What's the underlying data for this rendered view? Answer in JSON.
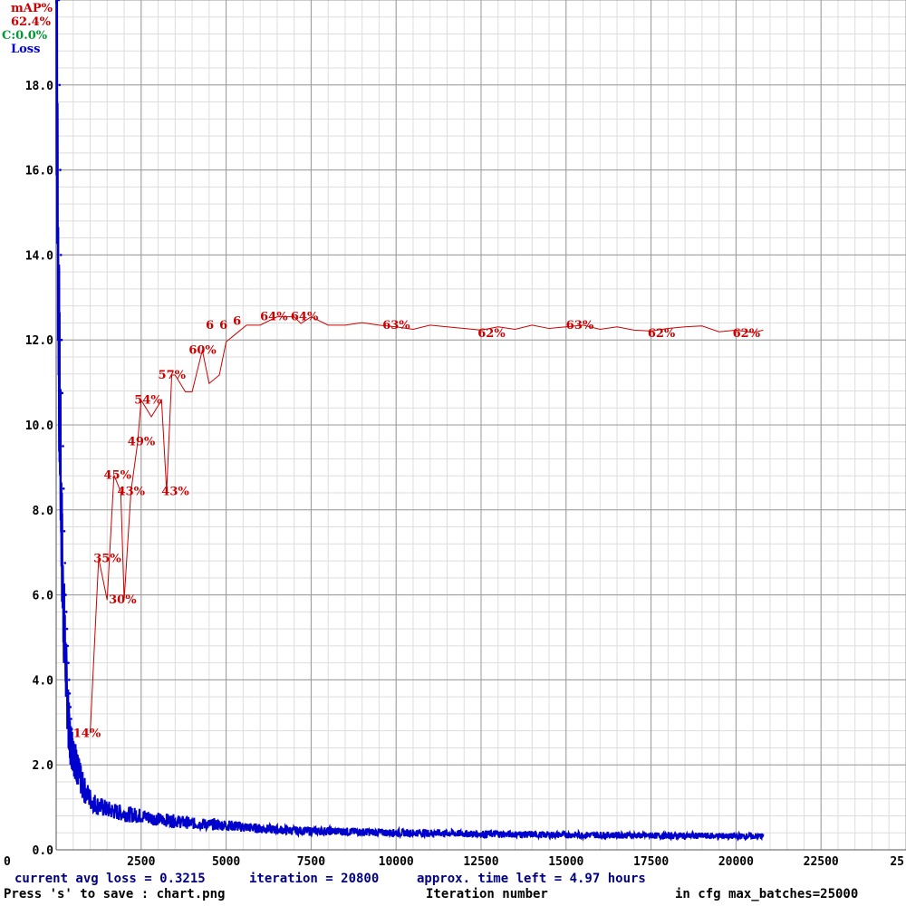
{
  "legend": {
    "map_label": "mAP%",
    "map_value": "62.4%",
    "c_label": "C:0.0%",
    "loss_label": "Loss"
  },
  "status": {
    "avg_loss": "current avg loss = 0.3215",
    "iteration": "iteration = 20800",
    "time_left": "approx. time left = 4.97 hours"
  },
  "footer": {
    "save_hint": "Press 's' to save : chart.png",
    "xlabel": "Iteration number",
    "max_batches": "in cfg max_batches=25000"
  },
  "colors": {
    "loss": "#0000cc",
    "map": "#cc0000",
    "grid_major": "#999999",
    "grid_minor": "#dddddd"
  },
  "chart_data": {
    "type": "line",
    "xlabel": "Iteration number",
    "ylabel": "Loss",
    "xlim": [
      0,
      25000
    ],
    "ylim": [
      0,
      20
    ],
    "x_ticks": [
      "0",
      "2500",
      "5000",
      "7500",
      "10000",
      "12500",
      "15000",
      "17500",
      "20000",
      "22500",
      "25"
    ],
    "y_ticks": [
      "0.0",
      "2.0",
      "4.0",
      "6.0",
      "8.0",
      "10.0",
      "12.0",
      "14.0",
      "16.0",
      "18.0"
    ],
    "grid": true,
    "series": [
      {
        "name": "Loss",
        "color": "#0000cc",
        "x": [
          0,
          20,
          50,
          80,
          120,
          160,
          200,
          250,
          300,
          350,
          400,
          500,
          600,
          700,
          800,
          1000,
          1200,
          1500,
          2000,
          2500,
          3000,
          3500,
          4000,
          5000,
          6000,
          7000,
          8000,
          9000,
          10000,
          11000,
          12000,
          13000,
          14000,
          15000,
          16000,
          17000,
          18000,
          19000,
          20000,
          20800
        ],
        "y": [
          20.0,
          18.0,
          15.0,
          12.0,
          9.5,
          7.5,
          6.0,
          5.0,
          4.0,
          3.2,
          2.6,
          2.3,
          2.0,
          1.7,
          1.45,
          1.2,
          1.05,
          0.95,
          0.85,
          0.8,
          0.72,
          0.68,
          0.62,
          0.58,
          0.5,
          0.45,
          0.44,
          0.42,
          0.4,
          0.4,
          0.38,
          0.37,
          0.36,
          0.35,
          0.35,
          0.34,
          0.33,
          0.33,
          0.32,
          0.3215
        ]
      },
      {
        "name": "mAP%",
        "color": "#cc0000",
        "x": [
          1000,
          1250,
          1500,
          1700,
          1900,
          2000,
          2200,
          2400,
          2500,
          2800,
          3100,
          3250,
          3400,
          3500,
          3800,
          4000,
          4300,
          4500,
          4800,
          5000,
          5300,
          5600,
          6000,
          6500,
          7000,
          7200,
          7500,
          8000,
          8500,
          9000,
          9500,
          10000,
          10500,
          11000,
          11500,
          12000,
          12500,
          13000,
          13500,
          14000,
          14500,
          15000,
          15500,
          16000,
          16500,
          17000,
          17500,
          18000,
          18500,
          19000,
          19500,
          20000,
          20500,
          20800
        ],
        "y": [
          14,
          35,
          30,
          45,
          43,
          30,
          43,
          49,
          54,
          52,
          54,
          43,
          57,
          57,
          55,
          55,
          60,
          56,
          57,
          61,
          62,
          63,
          63,
          64,
          64,
          63.2,
          64,
          63,
          63,
          63.3,
          63,
          62.8,
          62.5,
          63,
          62.8,
          62.6,
          62.4,
          62.8,
          62.5,
          63,
          62.6,
          62.8,
          63,
          62.5,
          62.8,
          62.4,
          62.3,
          62.6,
          62.8,
          62.9,
          62.2,
          62.4,
          62.1,
          62.4
        ]
      }
    ],
    "map_scale_note": "",
    "annotations": [
      {
        "x": 500,
        "map": 14,
        "text": "14%"
      },
      {
        "x": 1100,
        "map": 35,
        "text": "35%"
      },
      {
        "x": 1550,
        "map": 30,
        "text": "30%"
      },
      {
        "x": 1400,
        "map": 45,
        "text": "45%"
      },
      {
        "x": 1800,
        "map": 43,
        "text": "43%"
      },
      {
        "x": 2100,
        "map": 49,
        "text": "49%"
      },
      {
        "x": 3100,
        "map": 43,
        "text": "43%"
      },
      {
        "x": 2300,
        "map": 54,
        "text": "54%"
      },
      {
        "x": 3000,
        "map": 57,
        "text": "57%"
      },
      {
        "x": 3900,
        "map": 60,
        "text": "60%"
      },
      {
        "x": 4400,
        "map": 63,
        "text": "6"
      },
      {
        "x": 4800,
        "map": 63,
        "text": "6"
      },
      {
        "x": 5200,
        "map": 63.5,
        "text": "6"
      },
      {
        "x": 6000,
        "map": 64,
        "text": "64%"
      },
      {
        "x": 6900,
        "map": 64,
        "text": "64%"
      },
      {
        "x": 9600,
        "map": 63,
        "text": "63%"
      },
      {
        "x": 12400,
        "map": 62,
        "text": "62%"
      },
      {
        "x": 15000,
        "map": 63,
        "text": "63%"
      },
      {
        "x": 17400,
        "map": 62,
        "text": "62%"
      },
      {
        "x": 19900,
        "map": 62,
        "text": "62%"
      }
    ]
  }
}
